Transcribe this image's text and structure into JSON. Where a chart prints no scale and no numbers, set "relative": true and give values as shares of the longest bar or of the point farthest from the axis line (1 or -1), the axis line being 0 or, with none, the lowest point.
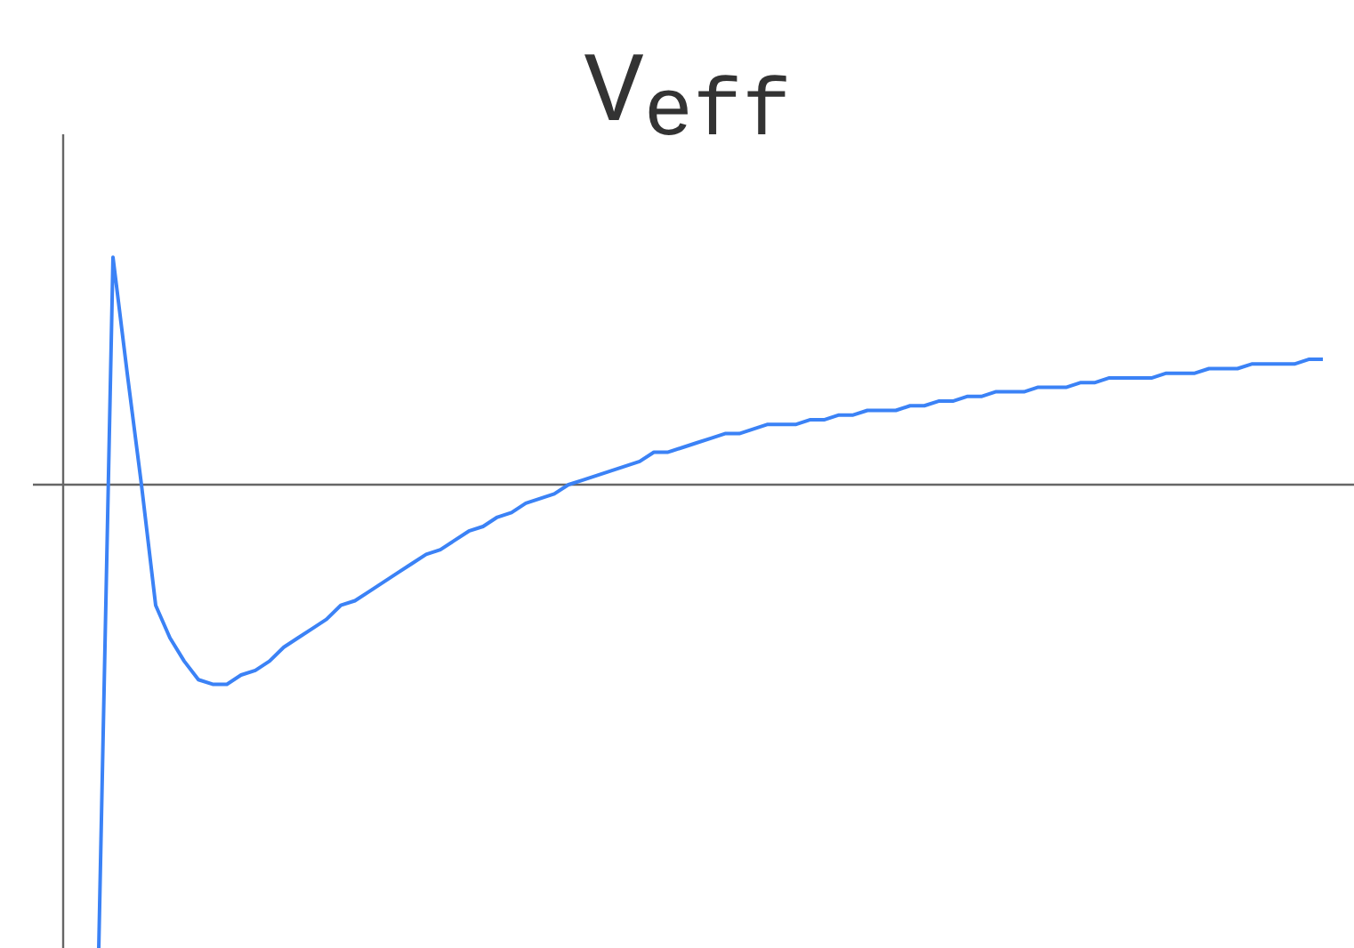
{
  "chart_data": {
    "type": "line",
    "title": "V$_{eff}$",
    "relative": true,
    "color": "#3b82f6",
    "categories": [
      null,
      null,
      null,
      null,
      null,
      null,
      null,
      null,
      null,
      null,
      null,
      null,
      null,
      null,
      null,
      null,
      null,
      null,
      null,
      null,
      null,
      null,
      null,
      null,
      null,
      null,
      null,
      null,
      null,
      null,
      null,
      null,
      null,
      null,
      null,
      null,
      null,
      null,
      null,
      null,
      null,
      null,
      null,
      null,
      null,
      null,
      null,
      null,
      null,
      null,
      null,
      null,
      null,
      null,
      null,
      null,
      null,
      null,
      null,
      null,
      null,
      null,
      null,
      null,
      null,
      null,
      null,
      null,
      null,
      null,
      null,
      null,
      null,
      null,
      null,
      null,
      null,
      null,
      null,
      null,
      null,
      null,
      null,
      null,
      null,
      null,
      null
    ],
    "values": [
      -1,
      0.49,
      0.24,
      0,
      -0.26,
      -0.33,
      -0.38,
      -0.42,
      -0.43,
      -0.43,
      -0.41,
      -0.4,
      -0.38,
      -0.35,
      -0.33,
      -0.31,
      -0.29,
      -0.26,
      -0.25,
      -0.23,
      -0.21,
      -0.19,
      -0.17,
      -0.15,
      -0.14,
      -0.12,
      -0.1,
      -0.09,
      -0.07,
      -0.06,
      -0.04,
      -0.03,
      -0.02,
      0.0,
      0.01,
      0.02,
      0.03,
      0.04,
      0.05,
      0.07,
      0.07,
      0.08,
      0.09,
      0.1,
      0.11,
      0.11,
      0.12,
      0.13,
      0.13,
      0.13,
      0.14,
      0.14,
      0.15,
      0.15,
      0.16,
      0.16,
      0.16,
      0.17,
      0.17,
      0.18,
      0.18,
      0.19,
      0.19,
      0.2,
      0.2,
      0.2,
      0.21,
      0.21,
      0.21,
      0.22,
      0.22,
      0.23,
      0.23,
      0.23,
      0.23,
      0.24,
      0.24,
      0.24,
      0.25,
      0.25,
      0.25,
      0.26,
      0.26,
      0.26,
      0.26,
      0.27,
      0.27
    ]
  }
}
